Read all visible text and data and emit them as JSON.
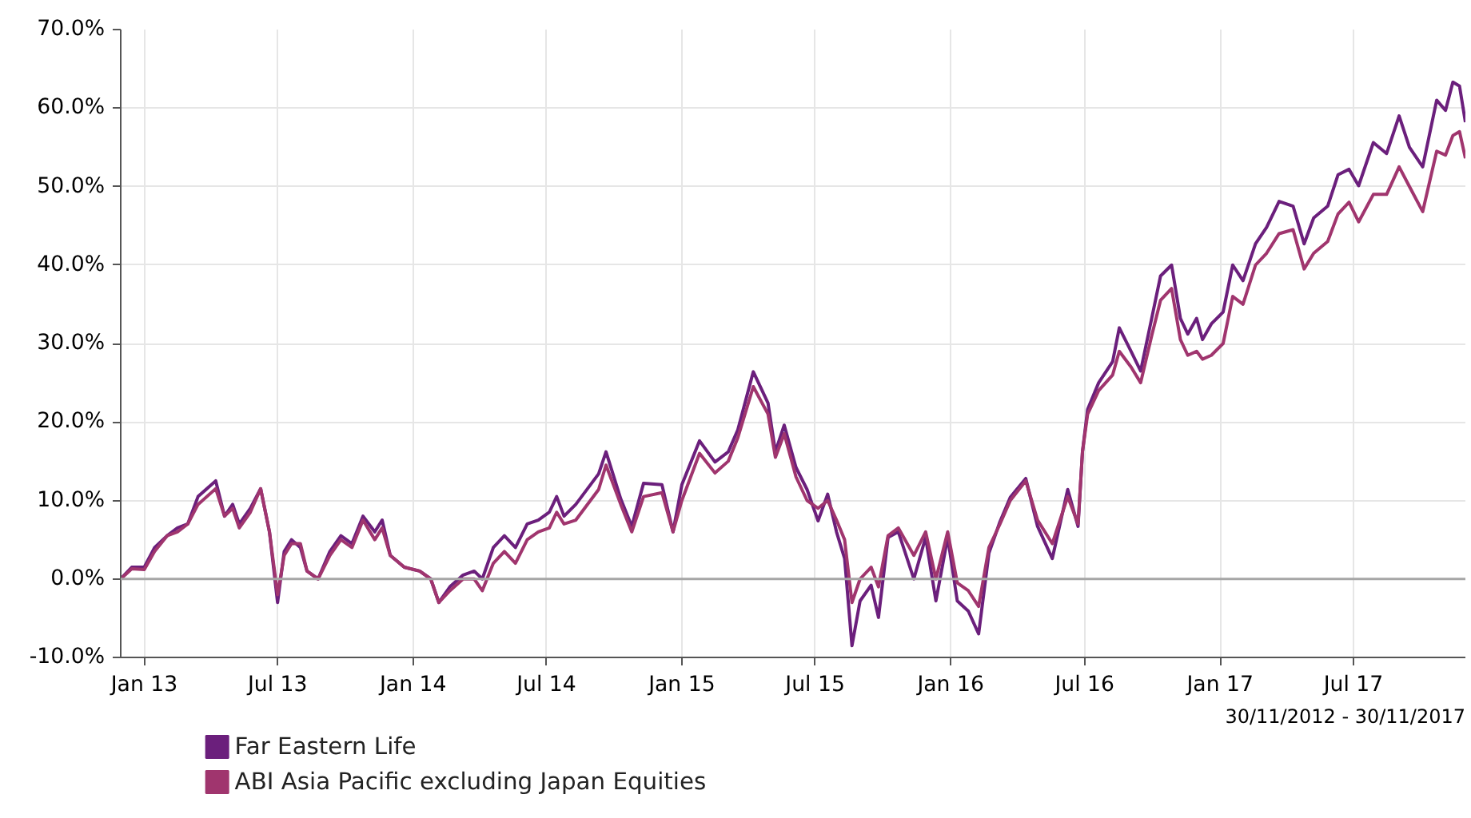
{
  "chart_data": {
    "type": "line",
    "grid": true,
    "legend": "bottom left",
    "line_style": "solid",
    "annotations": [
      "30/11/2012 - 30/11/2017"
    ],
    "xlim": [
      "2012-11-30",
      "2017-11-30"
    ],
    "xticks": [
      {
        "value": "2013-01-01",
        "label": "Jan 13"
      },
      {
        "value": "2013-07-01",
        "label": "Jul 13"
      },
      {
        "value": "2014-01-01",
        "label": "Jan 14"
      },
      {
        "value": "2014-07-01",
        "label": "Jul 14"
      },
      {
        "value": "2015-01-01",
        "label": "Jan 15"
      },
      {
        "value": "2015-07-01",
        "label": "Jul 15"
      },
      {
        "value": "2016-01-01",
        "label": "Jan 16"
      },
      {
        "value": "2016-07-01",
        "label": "Jul 16"
      },
      {
        "value": "2017-01-01",
        "label": "Jan 17"
      },
      {
        "value": "2017-07-01",
        "label": "Jul 17"
      }
    ],
    "ylim": [
      -10,
      70
    ],
    "yticks": [
      {
        "value": -10,
        "label": "-10.0%"
      },
      {
        "value": 0,
        "label": "0.0%"
      },
      {
        "value": 10,
        "label": "10.0%"
      },
      {
        "value": 20,
        "label": "20.0%"
      },
      {
        "value": 30,
        "label": "30.0%"
      },
      {
        "value": 40,
        "label": "40.0%"
      },
      {
        "value": 50,
        "label": "50.0%"
      },
      {
        "value": 60,
        "label": "60.0%"
      },
      {
        "value": 70,
        "label": "70.0%"
      }
    ],
    "ref_lines": [
      {
        "axis": "y",
        "value": 0,
        "color": "#a6a6a6"
      }
    ],
    "x": [
      "2012-11-30",
      "2012-12-15",
      "2013-01-01",
      "2013-01-15",
      "2013-02-01",
      "2013-02-15",
      "2013-03-01",
      "2013-03-15",
      "2013-04-08",
      "2013-04-20",
      "2013-05-01",
      "2013-05-10",
      "2013-05-25",
      "2013-06-08",
      "2013-06-20",
      "2013-07-01",
      "2013-07-10",
      "2013-07-20",
      "2013-08-01",
      "2013-08-10",
      "2013-08-25",
      "2013-09-10",
      "2013-09-25",
      "2013-10-10",
      "2013-10-25",
      "2013-11-10",
      "2013-11-20",
      "2013-12-01",
      "2013-12-20",
      "2014-01-10",
      "2014-01-25",
      "2014-02-05",
      "2014-02-20",
      "2014-03-10",
      "2014-03-25",
      "2014-04-05",
      "2014-04-20",
      "2014-05-05",
      "2014-05-20",
      "2014-06-05",
      "2014-06-20",
      "2014-07-05",
      "2014-07-15",
      "2014-07-25",
      "2014-08-10",
      "2014-09-10",
      "2014-09-20",
      "2014-10-10",
      "2014-10-25",
      "2014-11-10",
      "2014-12-05",
      "2014-12-20",
      "2015-01-01",
      "2015-01-25",
      "2015-02-15",
      "2015-03-05",
      "2015-03-18",
      "2015-04-08",
      "2015-04-28",
      "2015-05-08",
      "2015-05-20",
      "2015-06-05",
      "2015-06-20",
      "2015-07-05",
      "2015-07-18",
      "2015-07-30",
      "2015-08-10",
      "2015-08-20",
      "2015-08-31",
      "2015-09-15",
      "2015-09-25",
      "2015-10-08",
      "2015-10-22",
      "2015-11-12",
      "2015-11-28",
      "2015-12-12",
      "2015-12-28",
      "2016-01-10",
      "2016-01-25",
      "2016-02-08",
      "2016-02-22",
      "2016-03-08",
      "2016-03-22",
      "2016-04-12",
      "2016-04-28",
      "2016-05-18",
      "2016-06-08",
      "2016-06-22",
      "2016-06-28",
      "2016-07-05",
      "2016-07-20",
      "2016-08-08",
      "2016-08-17",
      "2016-09-02",
      "2016-09-15",
      "2016-09-30",
      "2016-10-12",
      "2016-10-27",
      "2016-11-08",
      "2016-11-18",
      "2016-11-30",
      "2016-12-08",
      "2016-12-20",
      "2017-01-05",
      "2017-01-18",
      "2017-02-01",
      "2017-02-18",
      "2017-03-05",
      "2017-03-22",
      "2017-04-10",
      "2017-04-25",
      "2017-05-08",
      "2017-05-27",
      "2017-06-10",
      "2017-06-25",
      "2017-07-08",
      "2017-07-28",
      "2017-08-15",
      "2017-09-01",
      "2017-09-15",
      "2017-10-03",
      "2017-10-22",
      "2017-11-03",
      "2017-11-13",
      "2017-11-22",
      "2017-11-30"
    ],
    "series": [
      {
        "name": "Far Eastern Life",
        "color": "#6b1f7c",
        "values": [
          0,
          1.5,
          1.5,
          4,
          5.5,
          6.5,
          7,
          10.5,
          12.5,
          8,
          9.5,
          7,
          9,
          11.5,
          6,
          -3,
          3.5,
          5,
          4,
          1,
          0,
          3.5,
          5.5,
          4.5,
          8,
          6,
          7.5,
          3,
          1.5,
          1,
          0,
          -3,
          -1,
          0.5,
          1,
          0,
          4,
          5.5,
          4,
          7,
          7.5,
          8.5,
          10.5,
          8,
          9.5,
          13.4,
          16.2,
          10.2,
          6.7,
          12.2,
          12,
          6,
          12,
          17.6,
          14.9,
          16.2,
          19,
          26.4,
          22.4,
          16.2,
          19.6,
          14.2,
          11.4,
          7.4,
          10.8,
          6,
          2.6,
          -8.5,
          -2.8,
          -0.8,
          -4.9,
          5.3,
          6,
          0,
          5.3,
          -2.8,
          5.3,
          -2.8,
          -4.1,
          -7,
          3.3,
          7.3,
          10.4,
          12.8,
          6.7,
          2.6,
          11.4,
          6.7,
          16.2,
          21.6,
          25,
          27.7,
          32,
          29,
          26.5,
          33.2,
          38.6,
          40,
          33.2,
          31.2,
          33.2,
          30.5,
          32.5,
          34,
          40,
          38,
          42.7,
          44.8,
          48.1,
          47.5,
          42.7,
          46,
          47.5,
          51.5,
          52.2,
          50.1,
          55.6,
          54.2,
          59,
          55,
          52.5,
          61,
          59.7,
          63.3,
          62.8,
          58.2
        ]
      },
      {
        "name": "ABI Asia Pacific excluding Japan Equities",
        "color": "#a0356e",
        "values": [
          0,
          1.3,
          1.2,
          3.5,
          5.5,
          6,
          7,
          9.5,
          11.5,
          8,
          9,
          6.5,
          8.5,
          11.5,
          6,
          -2,
          3,
          4.5,
          4.5,
          1,
          0,
          3,
          5,
          4,
          7.5,
          5,
          6.5,
          3,
          1.5,
          1,
          0,
          -3,
          -1.5,
          0,
          0,
          -1.5,
          2,
          3.5,
          2,
          5,
          6,
          6.5,
          8.5,
          7,
          7.5,
          11.4,
          14.5,
          9.5,
          6,
          10.5,
          11,
          6,
          10,
          16,
          13.5,
          15,
          18,
          24.5,
          21,
          15.5,
          18.5,
          13,
          10,
          9,
          10,
          7.5,
          5,
          -3,
          0,
          1.5,
          -1,
          5.5,
          6.5,
          3,
          6,
          0,
          6,
          -0.5,
          -1.5,
          -3.5,
          4,
          7,
          10,
          12.5,
          7.5,
          4.5,
          10.5,
          7,
          16.2,
          21,
          24,
          26,
          29,
          27,
          25,
          31,
          35.5,
          37,
          30.5,
          28.5,
          29,
          28,
          28.5,
          30,
          36,
          35,
          40,
          41.5,
          44,
          44.5,
          39.5,
          41.5,
          43,
          46.5,
          48,
          45.5,
          49,
          49,
          52.5,
          50,
          46.8,
          54.5,
          54,
          56.5,
          57,
          53.6
        ]
      }
    ]
  }
}
